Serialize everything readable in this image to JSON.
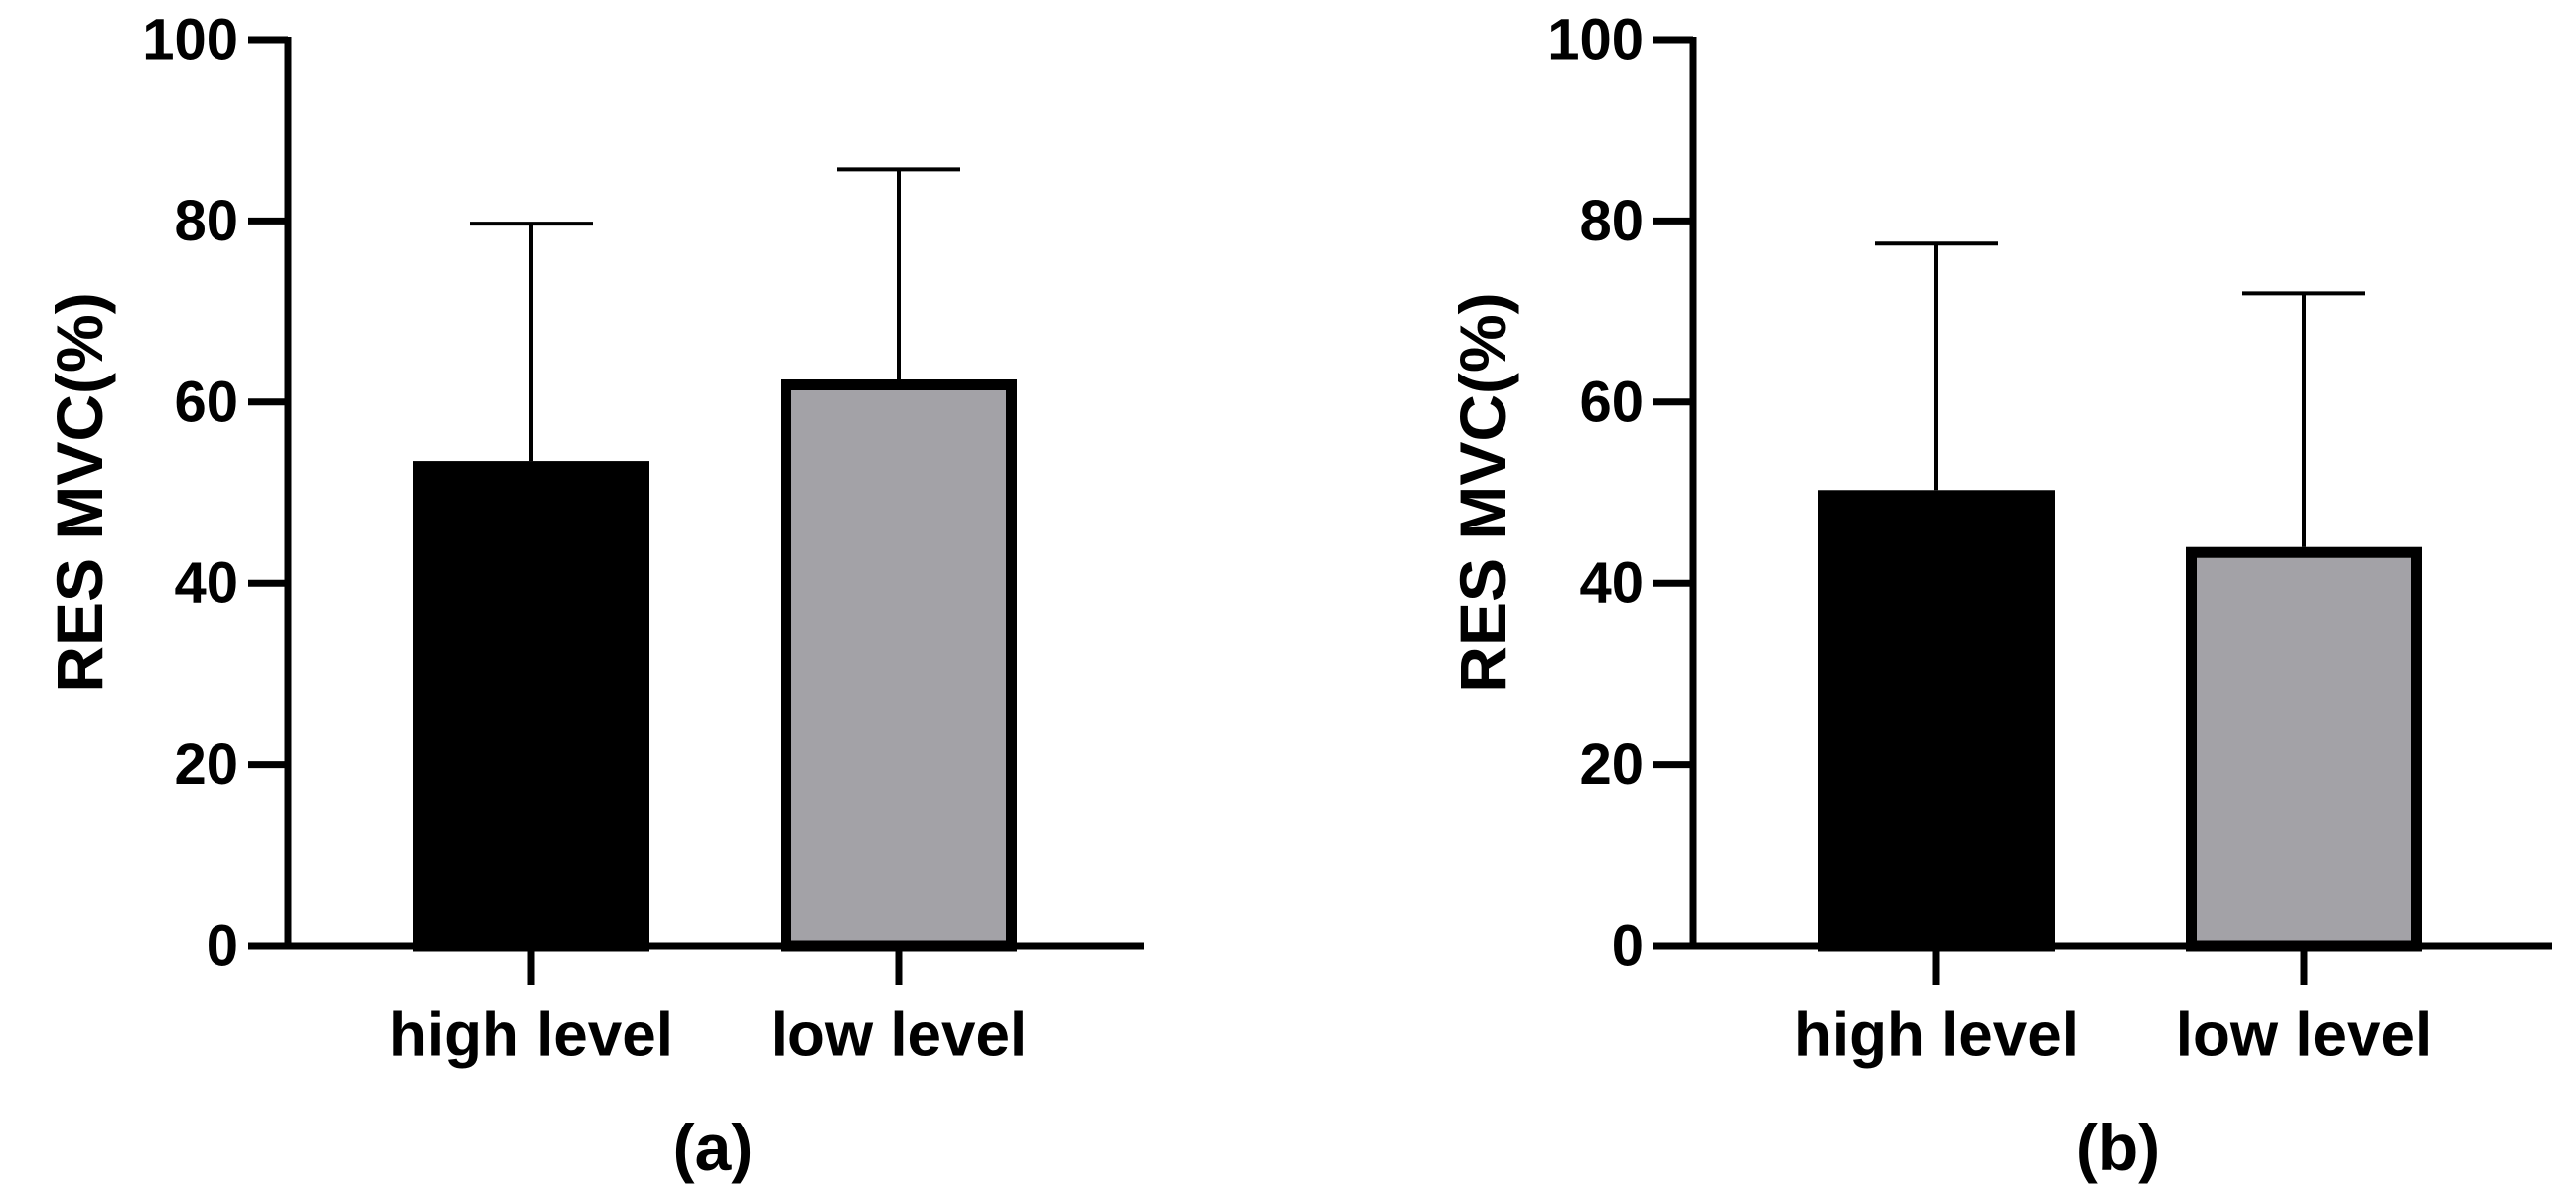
{
  "chart_data": [
    {
      "type": "bar",
      "panel_label": "(a)",
      "ylabel": "RES MVC(%)",
      "xlabel": "",
      "ylim": [
        0,
        100
      ],
      "yticks": [
        0,
        20,
        40,
        60,
        80,
        100
      ],
      "categories": [
        "high level",
        "low level"
      ],
      "values": [
        53.5,
        62.5
      ],
      "error_upper": [
        79.7,
        85.7
      ],
      "bar_colors": [
        "#000000",
        "#a3a2a7"
      ],
      "grid": false,
      "legend": "none"
    },
    {
      "type": "bar",
      "panel_label": "(b)",
      "ylabel": "RES MVC(%)",
      "xlabel": "",
      "ylim": [
        0,
        100
      ],
      "yticks": [
        0,
        20,
        40,
        60,
        80,
        100
      ],
      "categories": [
        "high level",
        "low level"
      ],
      "values": [
        50.3,
        44
      ],
      "error_upper": [
        77.5,
        72
      ],
      "bar_colors": [
        "#000000",
        "#a3a2a7"
      ],
      "grid": false,
      "legend": "none"
    }
  ]
}
